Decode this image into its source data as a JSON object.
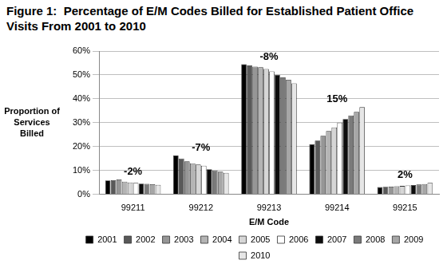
{
  "chart_data": {
    "type": "bar",
    "title": "Figure 1:  Percentage of E/M Codes Billed for Established Patient Office Visits From 2001 to 2010",
    "x_label": "E/M Code",
    "y_label": "Proportion of Services Billed",
    "categories": [
      "99211",
      "99212",
      "99213",
      "99214",
      "99215"
    ],
    "series": [
      {
        "name": "2001",
        "color": "#000000",
        "values": [
          5.8,
          16.2,
          54.5,
          21.0,
          3.0
        ]
      },
      {
        "name": "2002",
        "color": "#595959",
        "values": [
          5.9,
          15.0,
          54.0,
          22.5,
          3.1
        ]
      },
      {
        "name": "2003",
        "color": "#969696",
        "values": [
          6.2,
          13.8,
          53.5,
          24.5,
          3.2
        ]
      },
      {
        "name": "2004",
        "color": "#b4b4b4",
        "values": [
          5.3,
          13.0,
          53.2,
          26.5,
          3.4
        ]
      },
      {
        "name": "2005",
        "color": "#d6d6d6",
        "values": [
          5.0,
          12.5,
          52.5,
          28.0,
          3.5
        ]
      },
      {
        "name": "2006",
        "color": "#ffffff",
        "values": [
          4.8,
          12.0,
          51.5,
          30.0,
          3.7
        ]
      },
      {
        "name": "2007",
        "color": "#0d0d0d",
        "values": [
          4.5,
          10.5,
          50.0,
          31.5,
          3.9
        ]
      },
      {
        "name": "2008",
        "color": "#7a7a7a",
        "values": [
          4.4,
          10.0,
          49.0,
          33.0,
          4.1
        ]
      },
      {
        "name": "2009",
        "color": "#a6a6a6",
        "values": [
          4.2,
          9.5,
          48.0,
          34.5,
          4.3
        ]
      },
      {
        "name": "2010",
        "color": "#e6e6e6",
        "values": [
          4.0,
          9.0,
          46.5,
          36.5,
          4.8
        ]
      }
    ],
    "annotations": [
      {
        "category": "99211",
        "text": "-2%"
      },
      {
        "category": "99212",
        "text": "-7%"
      },
      {
        "category": "99213",
        "text": "-8%"
      },
      {
        "category": "99214",
        "text": "15%"
      },
      {
        "category": "99215",
        "text": "2%"
      }
    ],
    "ylim": [
      0,
      60
    ],
    "yticks": [
      {
        "value": 0,
        "label": "0%"
      },
      {
        "value": 10,
        "label": "10%"
      },
      {
        "value": 20,
        "label": "20%"
      },
      {
        "value": 30,
        "label": "30%"
      },
      {
        "value": 40,
        "label": "40%"
      },
      {
        "value": 50,
        "label": "50%"
      },
      {
        "value": 60,
        "label": "60%"
      }
    ],
    "grid": true,
    "legend": "bottom"
  }
}
